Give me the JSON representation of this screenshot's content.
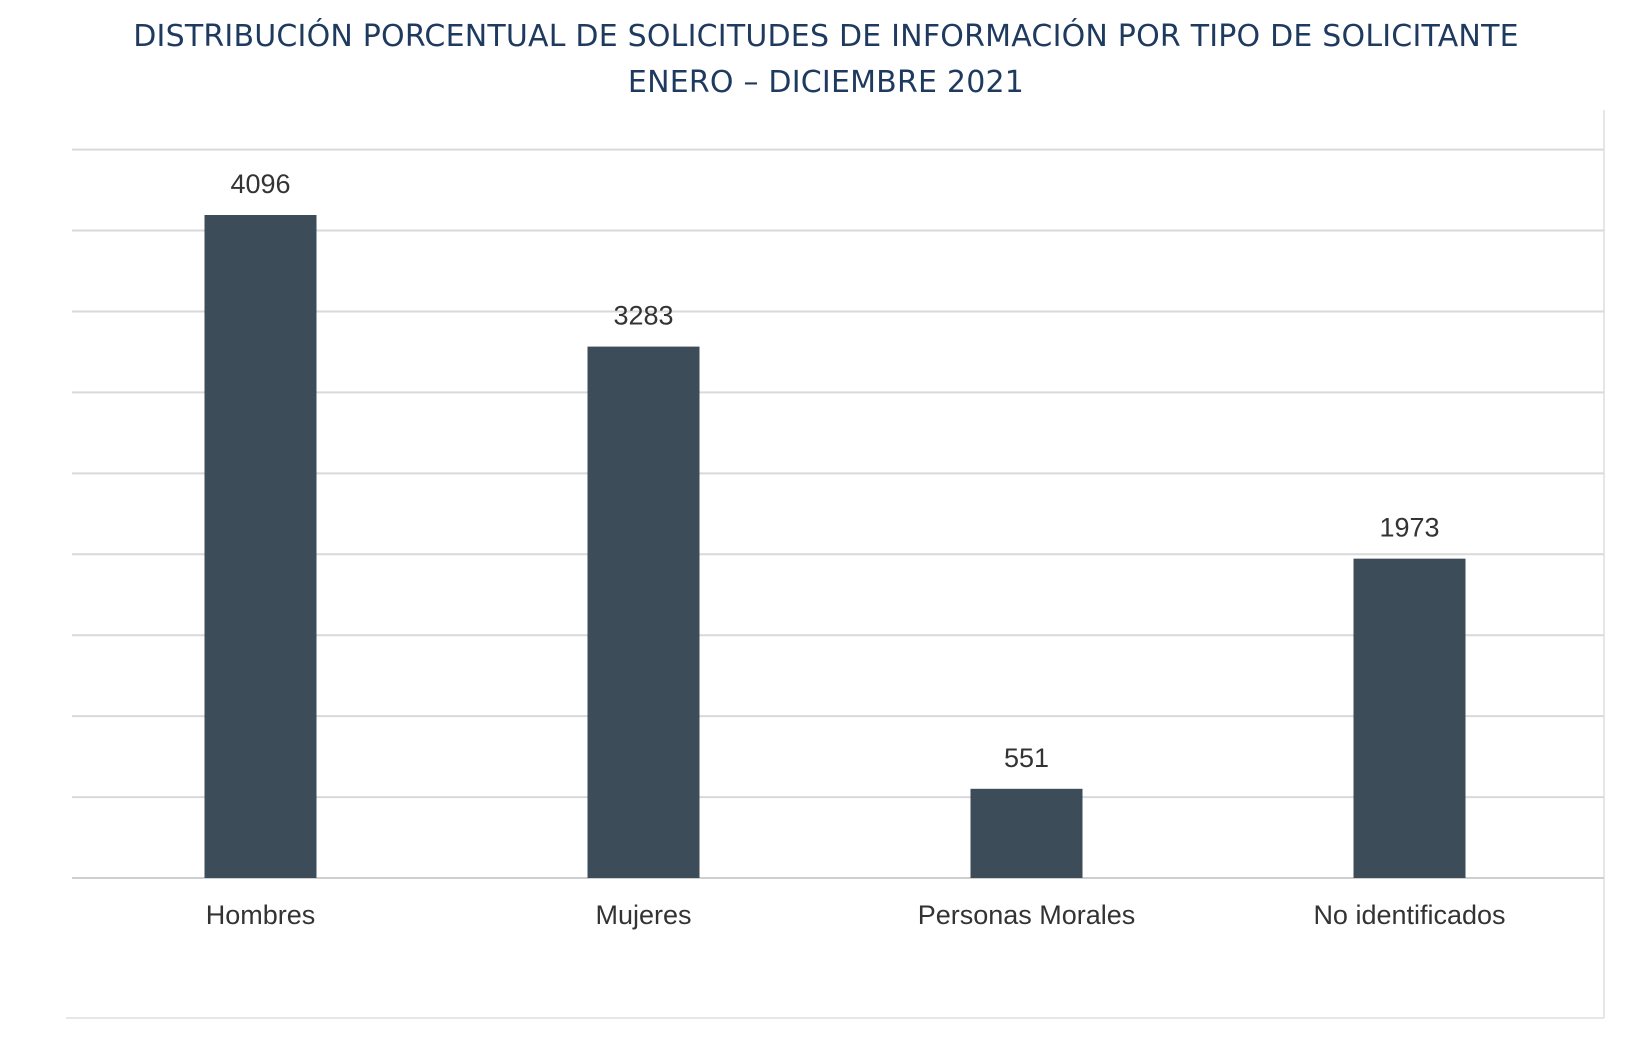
{
  "chart_data": {
    "type": "bar",
    "title": "DISTRIBUCIÓN PORCENTUAL DE SOLICITUDES DE INFORMACIÓN POR TIPO DE SOLICITANTE",
    "subtitle": "ENERO – DICIEMBRE 2021",
    "xlabel": "",
    "ylabel": "",
    "categories": [
      "Hombres",
      "Mujeres",
      "Personas Morales",
      "No identificados"
    ],
    "values": [
      4096,
      3283,
      551,
      1973
    ],
    "data_labels": [
      "4096",
      "3283",
      "551",
      "1973"
    ],
    "ylim": [
      0,
      4800
    ],
    "grid": true,
    "gridline_step": 500,
    "legend": "none",
    "bar_color": "#3c4c59",
    "title_color": "#1f3a5f"
  }
}
